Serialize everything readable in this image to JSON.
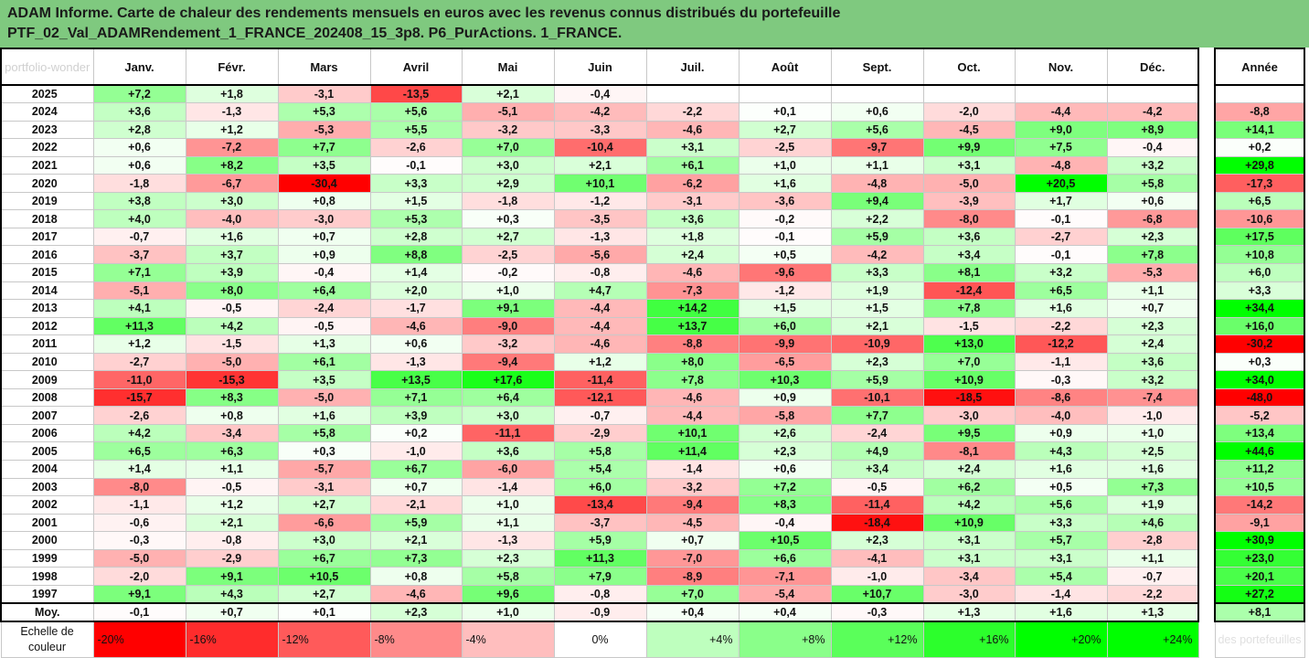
{
  "title": {
    "line1": "ADAM Informe. Carte de chaleur des rendements mensuels en euros avec les revenus connus distribués du portefeuille",
    "line2": "PTF_02_Val_ADAMRendement_1_FRANCE_202408_15_3p8. P6_PurActions. 1_FRANCE."
  },
  "corner_watermark": "portfolio-wonder",
  "moy_label": "Moy.",
  "scale_label": "Echelle de couleur",
  "scale_watermark": "des portefeuilles",
  "chart_data": {
    "type": "heatmap",
    "columns": [
      "Janv.",
      "Févr.",
      "Mars",
      "Avril",
      "Mai",
      "Juin",
      "Juil.",
      "Août",
      "Sept.",
      "Oct.",
      "Nov.",
      "Déc."
    ],
    "year_column": "Année",
    "rows": [
      {
        "year": "2025",
        "months": [
          "+7,2",
          "+1,8",
          "-3,1",
          "-13,5",
          "+2,1",
          "-0,4",
          "",
          "",
          "",
          "",
          "",
          ""
        ],
        "annual": ""
      },
      {
        "year": "2024",
        "months": [
          "+3,6",
          "-1,3",
          "+5,3",
          "+5,6",
          "-5,1",
          "-4,2",
          "-2,2",
          "+0,1",
          "+0,6",
          "-2,0",
          "-4,4",
          "-4,2"
        ],
        "annual": "-8,8"
      },
      {
        "year": "2023",
        "months": [
          "+2,8",
          "+1,2",
          "-5,3",
          "+5,5",
          "-3,2",
          "-3,3",
          "-4,6",
          "+2,7",
          "+5,6",
          "-4,5",
          "+9,0",
          "+8,9"
        ],
        "annual": "+14,1"
      },
      {
        "year": "2022",
        "months": [
          "+0,6",
          "-7,2",
          "+7,7",
          "-2,6",
          "+7,0",
          "-10,4",
          "+3,1",
          "-2,5",
          "-9,7",
          "+9,9",
          "+7,5",
          "-0,4"
        ],
        "annual": "+0,2"
      },
      {
        "year": "2021",
        "months": [
          "+0,6",
          "+8,2",
          "+3,5",
          "-0,1",
          "+3,0",
          "+2,1",
          "+6,1",
          "+1,0",
          "+1,1",
          "+3,1",
          "-4,8",
          "+3,2"
        ],
        "annual": "+29,8"
      },
      {
        "year": "2020",
        "months": [
          "-1,8",
          "-6,7",
          "-30,4",
          "+3,3",
          "+2,9",
          "+10,1",
          "-6,2",
          "+1,6",
          "-4,8",
          "-5,0",
          "+20,5",
          "+5,8"
        ],
        "annual": "-17,3"
      },
      {
        "year": "2019",
        "months": [
          "+3,8",
          "+3,0",
          "+0,8",
          "+1,5",
          "-1,8",
          "-1,2",
          "-3,1",
          "-3,6",
          "+9,4",
          "-3,9",
          "+1,7",
          "+0,6"
        ],
        "annual": "+6,5"
      },
      {
        "year": "2018",
        "months": [
          "+4,0",
          "-4,0",
          "-3,0",
          "+5,3",
          "+0,3",
          "-3,5",
          "+3,6",
          "-0,2",
          "+2,2",
          "-8,0",
          "-0,1",
          "-6,8"
        ],
        "annual": "-10,6"
      },
      {
        "year": "2017",
        "months": [
          "-0,7",
          "+1,6",
          "+0,7",
          "+2,8",
          "+2,7",
          "-1,3",
          "+1,8",
          "-0,1",
          "+5,9",
          "+3,6",
          "-2,7",
          "+2,3"
        ],
        "annual": "+17,5"
      },
      {
        "year": "2016",
        "months": [
          "-3,7",
          "+3,7",
          "+0,9",
          "+8,8",
          "-2,5",
          "-5,6",
          "+2,4",
          "+0,5",
          "-4,2",
          "+3,4",
          "-0,1",
          "+7,8"
        ],
        "annual": "+10,8"
      },
      {
        "year": "2015",
        "months": [
          "+7,1",
          "+3,9",
          "-0,4",
          "+1,4",
          "-0,2",
          "-0,8",
          "-4,6",
          "-9,6",
          "+3,3",
          "+8,1",
          "+3,2",
          "-5,3"
        ],
        "annual": "+6,0"
      },
      {
        "year": "2014",
        "months": [
          "-5,1",
          "+8,0",
          "+6,4",
          "+2,0",
          "+1,0",
          "+4,7",
          "-7,3",
          "-1,2",
          "+1,9",
          "-12,4",
          "+6,5",
          "+1,1"
        ],
        "annual": "+3,3"
      },
      {
        "year": "2013",
        "months": [
          "+4,1",
          "-0,5",
          "-2,4",
          "-1,7",
          "+9,1",
          "-4,4",
          "+14,2",
          "+1,5",
          "+1,5",
          "+7,8",
          "+1,6",
          "+0,7"
        ],
        "annual": "+34,4"
      },
      {
        "year": "2012",
        "months": [
          "+11,3",
          "+4,2",
          "-0,5",
          "-4,6",
          "-9,0",
          "-4,4",
          "+13,7",
          "+6,0",
          "+2,1",
          "-1,5",
          "-2,2",
          "+2,3"
        ],
        "annual": "+16,0"
      },
      {
        "year": "2011",
        "months": [
          "+1,2",
          "-1,5",
          "+1,3",
          "+0,6",
          "-3,2",
          "-4,6",
          "-8,8",
          "-9,9",
          "-10,9",
          "+13,0",
          "-12,2",
          "+2,4"
        ],
        "annual": "-30,2"
      },
      {
        "year": "2010",
        "months": [
          "-2,7",
          "-5,0",
          "+6,1",
          "-1,3",
          "-9,4",
          "+1,2",
          "+8,0",
          "-6,5",
          "+2,3",
          "+7,0",
          "-1,1",
          "+3,6"
        ],
        "annual": "+0,3"
      },
      {
        "year": "2009",
        "months": [
          "-11,0",
          "-15,3",
          "+3,5",
          "+13,5",
          "+17,6",
          "-11,4",
          "+7,8",
          "+10,3",
          "+5,9",
          "+10,9",
          "-0,3",
          "+3,2"
        ],
        "annual": "+34,0"
      },
      {
        "year": "2008",
        "months": [
          "-15,7",
          "+8,3",
          "-5,0",
          "+7,1",
          "+6,4",
          "-12,1",
          "-4,6",
          "+0,9",
          "-10,1",
          "-18,5",
          "-8,6",
          "-7,4"
        ],
        "annual": "-48,0"
      },
      {
        "year": "2007",
        "months": [
          "-2,6",
          "+0,8",
          "+1,6",
          "+3,9",
          "+3,0",
          "-0,7",
          "-4,4",
          "-5,8",
          "+7,7",
          "-3,0",
          "-4,0",
          "-1,0"
        ],
        "annual": "-5,2"
      },
      {
        "year": "2006",
        "months": [
          "+4,2",
          "-3,4",
          "+5,8",
          "+0,2",
          "-11,1",
          "-2,9",
          "+10,1",
          "+2,6",
          "-2,4",
          "+9,5",
          "+0,9",
          "+1,0"
        ],
        "annual": "+13,4"
      },
      {
        "year": "2005",
        "months": [
          "+6,5",
          "+6,3",
          "+0,3",
          "-1,0",
          "+3,6",
          "+5,8",
          "+11,4",
          "+2,3",
          "+4,9",
          "-8,1",
          "+4,3",
          "+2,5"
        ],
        "annual": "+44,6"
      },
      {
        "year": "2004",
        "months": [
          "+1,4",
          "+1,1",
          "-5,7",
          "+6,7",
          "-6,0",
          "+5,4",
          "-1,4",
          "+0,6",
          "+3,4",
          "+2,4",
          "+1,6",
          "+1,6"
        ],
        "annual": "+11,2"
      },
      {
        "year": "2003",
        "months": [
          "-8,0",
          "-0,5",
          "-3,1",
          "+0,7",
          "-1,4",
          "+6,0",
          "-3,2",
          "+7,2",
          "-0,5",
          "+6,2",
          "+0,5",
          "+7,3"
        ],
        "annual": "+10,5"
      },
      {
        "year": "2002",
        "months": [
          "-1,1",
          "+1,2",
          "+2,7",
          "-2,1",
          "+1,0",
          "-13,4",
          "-9,4",
          "+8,3",
          "-11,4",
          "+4,2",
          "+5,6",
          "+1,9"
        ],
        "annual": "-14,2"
      },
      {
        "year": "2001",
        "months": [
          "-0,6",
          "+2,1",
          "-6,6",
          "+5,9",
          "+1,1",
          "-3,7",
          "-4,5",
          "-0,4",
          "-18,4",
          "+10,9",
          "+3,3",
          "+4,6"
        ],
        "annual": "-9,1"
      },
      {
        "year": "2000",
        "months": [
          "-0,3",
          "-0,8",
          "+3,0",
          "+2,1",
          "-1,3",
          "+5,9",
          "+0,7",
          "+10,5",
          "+2,3",
          "+3,1",
          "+5,7",
          "-2,8"
        ],
        "annual": "+30,9"
      },
      {
        "year": "1999",
        "months": [
          "-5,0",
          "-2,9",
          "+6,7",
          "+7,3",
          "+2,3",
          "+11,3",
          "-7,0",
          "+6,6",
          "-4,1",
          "+3,1",
          "+3,1",
          "+1,1"
        ],
        "annual": "+23,0"
      },
      {
        "year": "1998",
        "months": [
          "-2,0",
          "+9,1",
          "+10,5",
          "+0,8",
          "+5,8",
          "+7,9",
          "-8,9",
          "-7,1",
          "-1,0",
          "-3,4",
          "+5,4",
          "-0,7"
        ],
        "annual": "+20,1"
      },
      {
        "year": "1997",
        "months": [
          "+9,1",
          "+4,3",
          "+2,7",
          "-4,6",
          "+9,6",
          "-0,8",
          "+7,0",
          "-5,4",
          "+10,7",
          "-3,0",
          "-1,4",
          "-2,2"
        ],
        "annual": "+27,2"
      }
    ],
    "average": {
      "months": [
        "-0,1",
        "+0,7",
        "+0,1",
        "+2,3",
        "+1,0",
        "-0,9",
        "+0,4",
        "+0,4",
        "-0,3",
        "+1,3",
        "+1,6",
        "+1,3"
      ],
      "annual": "+8,1"
    },
    "color_scale": [
      "-20%",
      "-16%",
      "-12%",
      "-8%",
      "-4%",
      "0%",
      "+4%",
      "+8%",
      "+12%",
      "+16%",
      "+20%",
      "+24%"
    ],
    "color_scale_values": [
      -20,
      -16,
      -12,
      -8,
      -4,
      0,
      4,
      8,
      12,
      16,
      20,
      24
    ],
    "monthly_saturation": 20,
    "annual_saturation": 30,
    "colors": {
      "negative": "#ff0000",
      "neutral": "#ffffff",
      "positive": "#00ff00",
      "title_bg": "#7fc97f"
    }
  }
}
